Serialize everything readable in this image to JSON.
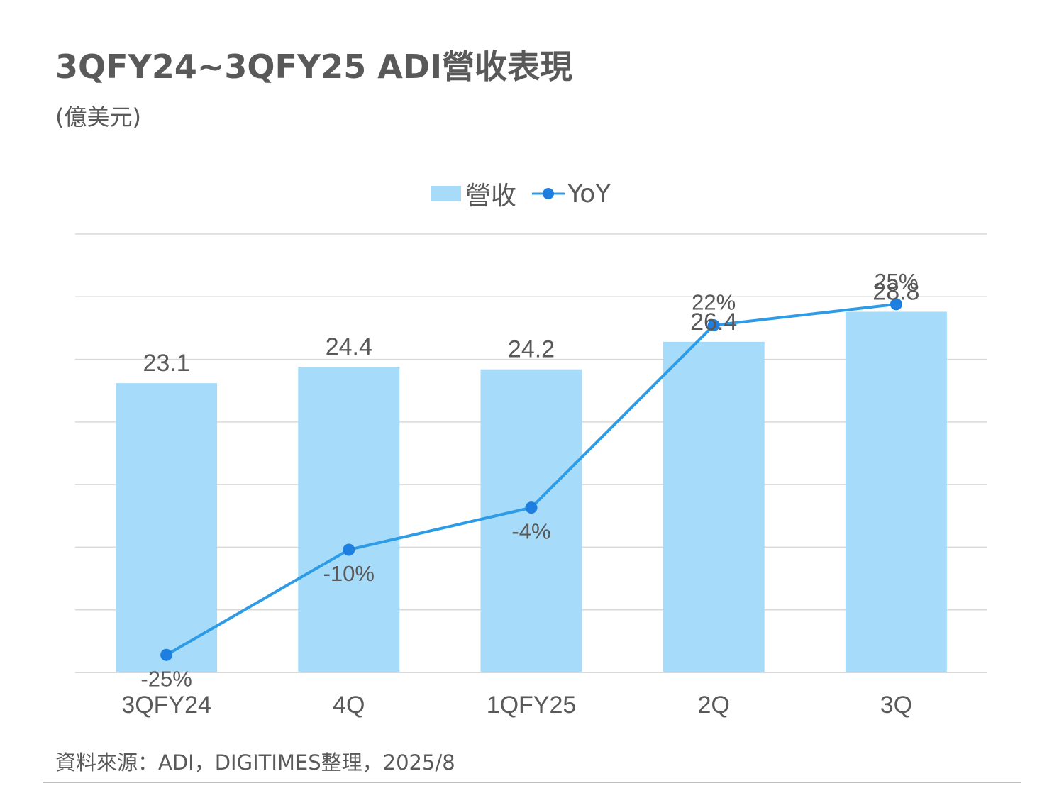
{
  "title": "3QFY24~3QFY25 ADI營收表現",
  "subtitle": "(億美元)",
  "source": "資料來源：ADI，DIGITIMES整理，2025/8",
  "colors": {
    "bar": "#a6dcfa",
    "line": "#2e9be6",
    "marker": "#1f7fe0",
    "grid": "#d9d9d9",
    "text": "#595959"
  },
  "chart_data": {
    "type": "bar",
    "categories": [
      "3QFY24",
      "4Q",
      "1QFY25",
      "2Q",
      "3Q"
    ],
    "series": [
      {
        "name": "營收",
        "type": "bar",
        "values": [
          23.1,
          24.4,
          24.2,
          26.4,
          28.8
        ],
        "labels": [
          "23.1",
          "24.4",
          "24.2",
          "26.4",
          "28.8"
        ]
      },
      {
        "name": "YoY",
        "type": "line",
        "values": [
          -25,
          -10,
          -4,
          22,
          25
        ],
        "labels": [
          "-25%",
          "-10%",
          "-4%",
          "22%",
          "25%"
        ]
      }
    ],
    "bar_axis_range": [
      0,
      35
    ],
    "line_axis_range": [
      -27.5,
      35
    ],
    "grid": true,
    "legend": "top-center"
  }
}
